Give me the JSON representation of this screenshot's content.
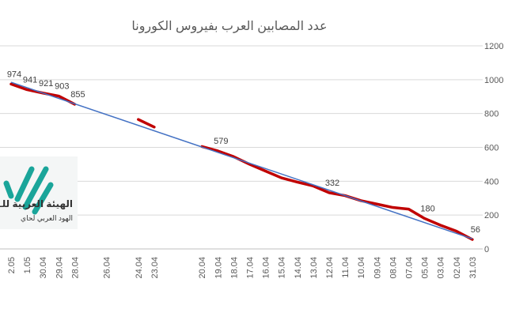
{
  "chart_data": {
    "type": "line",
    "title": "عدد المصابين العرب بفيروس الكورونا",
    "categories": [
      "2.05",
      "1.05",
      "30.04",
      "29.04",
      "28.04",
      null,
      "26.04",
      null,
      "24.04",
      "23.04",
      null,
      null,
      "20.04",
      "19.04",
      "18.04",
      "17.04",
      "16.04",
      "15.04",
      "14.04",
      "13.04",
      "12.04",
      "11.04",
      "10.04",
      "09.04",
      "08.04",
      "07.04",
      "05.04",
      "03.04",
      "02.04",
      "31.03"
    ],
    "series": [
      {
        "color": "#c00000",
        "values": [
          974,
          941,
          921,
          903,
          855,
          null,
          null,
          null,
          765,
          720,
          null,
          null,
          605,
          579,
          545,
          500,
          460,
          420,
          395,
          372,
          332,
          315,
          285,
          265,
          245,
          235,
          180,
          140,
          105,
          56
        ],
        "value_labels": [
          "974",
          "941",
          "921",
          "903",
          "855",
          null,
          null,
          null,
          null,
          null,
          null,
          null,
          null,
          "579",
          null,
          null,
          null,
          null,
          null,
          null,
          "332",
          null,
          null,
          null,
          null,
          null,
          "180",
          null,
          null,
          "56"
        ]
      }
    ],
    "trendline": {
      "color": "#4472c4",
      "values": [
        985,
        60
      ]
    },
    "ylim": [
      0,
      1200
    ],
    "yticks": [
      0,
      200,
      400,
      600,
      800,
      1000,
      1200
    ],
    "grid": true,
    "y_axis_side": "right"
  },
  "logo": {
    "title": "الهيئة العربية للـ",
    "subtitle": "الهود العربي لحاي"
  }
}
